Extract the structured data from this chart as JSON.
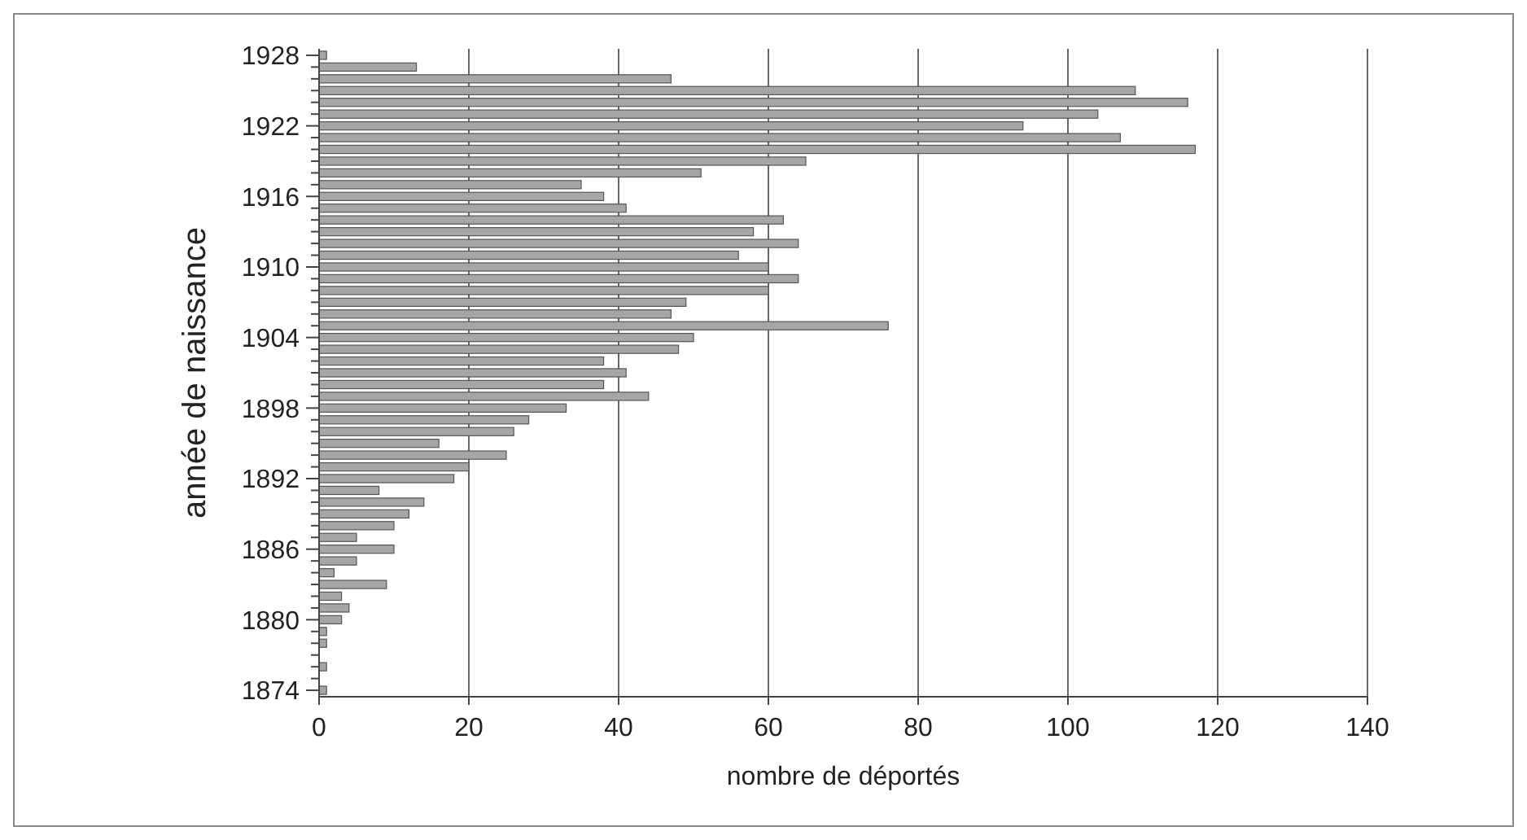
{
  "chart_data": {
    "type": "bar",
    "orientation": "horizontal",
    "xlabel": "nombre de déportés",
    "ylabel": "année de naissance",
    "categories": [
      "1928",
      null,
      null,
      null,
      null,
      null,
      "1922",
      null,
      null,
      null,
      null,
      null,
      "1916",
      null,
      null,
      null,
      null,
      null,
      "1910",
      null,
      null,
      null,
      null,
      null,
      "1904",
      null,
      null,
      null,
      null,
      null,
      "1898",
      null,
      null,
      null,
      null,
      null,
      "1892",
      null,
      null,
      null,
      null,
      null,
      "1886",
      null,
      null,
      null,
      null,
      null,
      "1880",
      null,
      null,
      null,
      null,
      null,
      "1874"
    ],
    "values": [
      1,
      13,
      47,
      109,
      116,
      104,
      94,
      107,
      117,
      65,
      51,
      35,
      38,
      41,
      62,
      58,
      64,
      56,
      60,
      64,
      60,
      49,
      47,
      76,
      50,
      48,
      38,
      41,
      38,
      44,
      33,
      28,
      26,
      16,
      25,
      20,
      18,
      8,
      14,
      12,
      10,
      5,
      10,
      5,
      2,
      9,
      3,
      4,
      3,
      1,
      1,
      0,
      1,
      0,
      1
    ],
    "color": "#a6a6a6",
    "xlim": [
      0,
      140
    ],
    "xticks": [
      0,
      20,
      40,
      60,
      80,
      100,
      120,
      140
    ],
    "grid": "x"
  }
}
